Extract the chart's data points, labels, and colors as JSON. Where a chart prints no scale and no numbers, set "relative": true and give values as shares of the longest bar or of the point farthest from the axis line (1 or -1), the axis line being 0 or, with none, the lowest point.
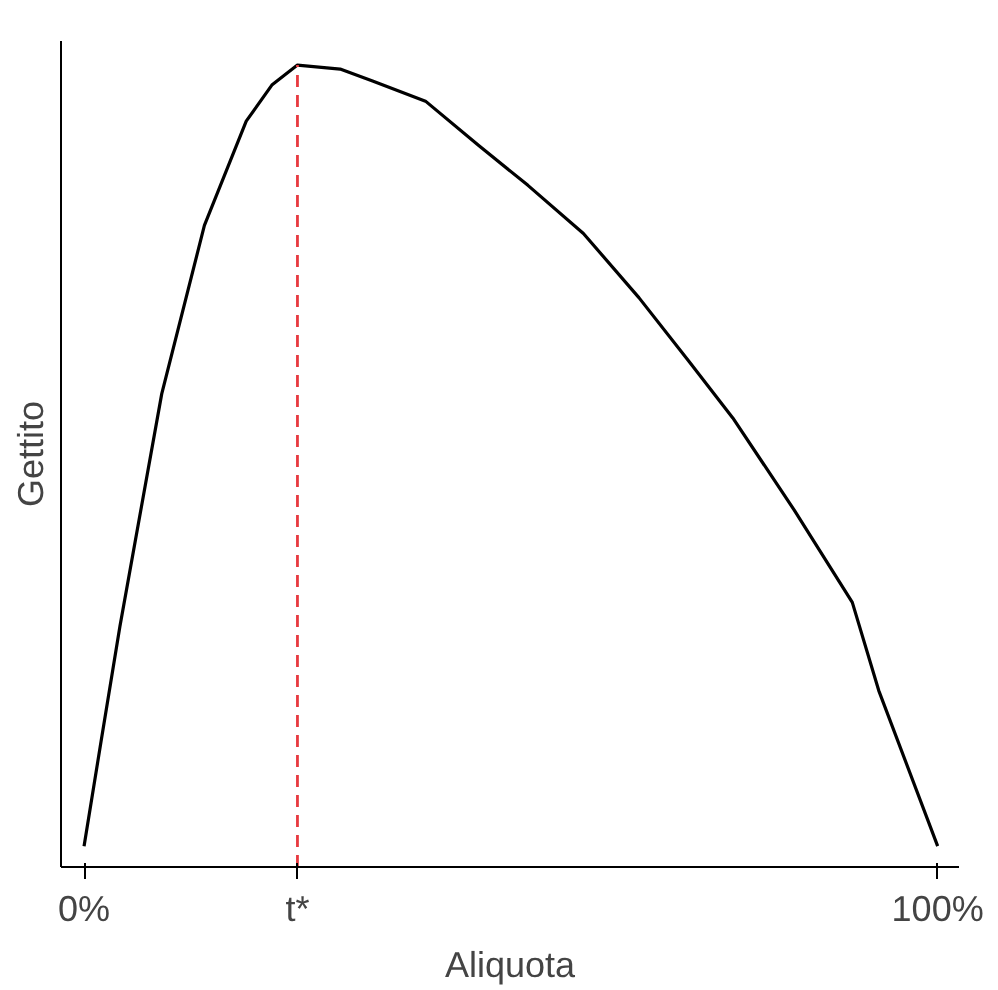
{
  "chart_data": {
    "type": "line",
    "relative": true,
    "xlabel": "Aliquota",
    "ylabel": "Gettito",
    "x": [
      0,
      2,
      4.2,
      9.1,
      14.1,
      19,
      22,
      25,
      30,
      33.8,
      40,
      46.2,
      52,
      58.5,
      65,
      70.9,
      76,
      83.2,
      90,
      93.1,
      100
    ],
    "series": [
      {
        "color": "#000000",
        "values": [
          0.026,
          0.157,
          0.3,
          0.59,
          0.8,
          0.93,
          0.975,
          1.0,
          0.995,
          0.98,
          0.955,
          0.9,
          0.85,
          0.79,
          0.71,
          0.63,
          0.56,
          0.445,
          0.33,
          0.22,
          0.026
        ]
      }
    ],
    "xlim": [
      -2.7,
      102.5
    ],
    "xticks": [
      {
        "value": 0,
        "label": "0%"
      },
      {
        "value": 25,
        "label": "t*"
      },
      {
        "value": 100,
        "label": "100%"
      }
    ],
    "ref_lines": [
      {
        "axis": "x",
        "value": 25,
        "label": null,
        "color": "#e8393f",
        "line_style": "dashed"
      }
    ],
    "grid": false,
    "marker": "none",
    "line_style": "solid"
  }
}
